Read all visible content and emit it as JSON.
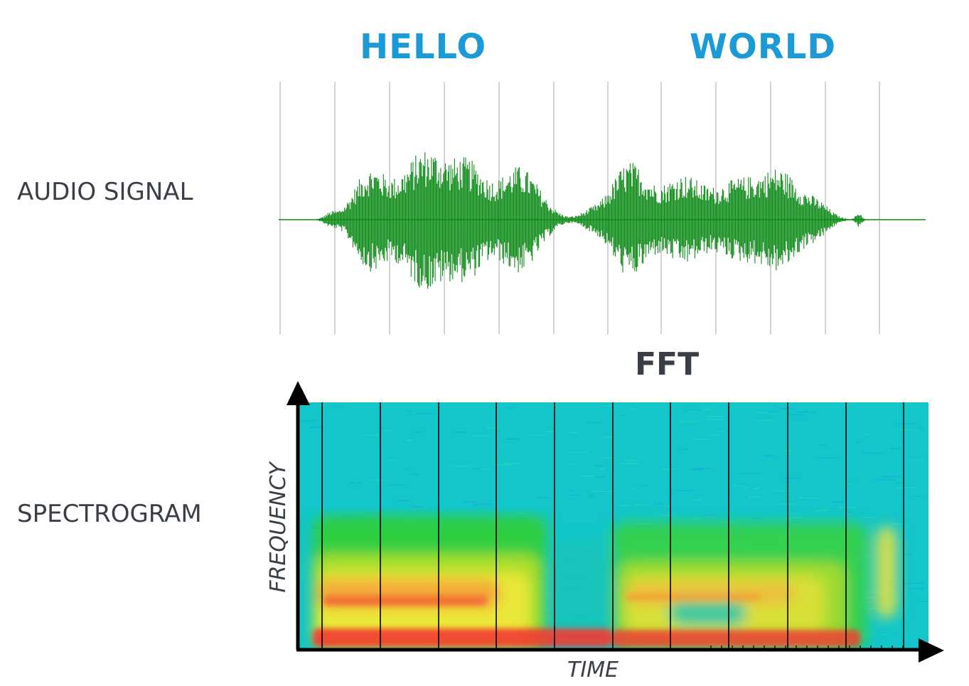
{
  "words": {
    "first": "HELLO",
    "second": "WORLD"
  },
  "labels": {
    "audio_signal": "AUDIO SIGNAL",
    "spectrogram": "SPECTROGRAM",
    "fft": "FFT",
    "frequency": "FREQUENCY",
    "time": "TIME"
  },
  "colors": {
    "word": "#1a9ad6",
    "label": "#3a3f47",
    "waveform": "#0c8a16",
    "grid": "#c8c8c8",
    "spectrogram_background": "#12c6c9",
    "axis": "#000000"
  }
}
